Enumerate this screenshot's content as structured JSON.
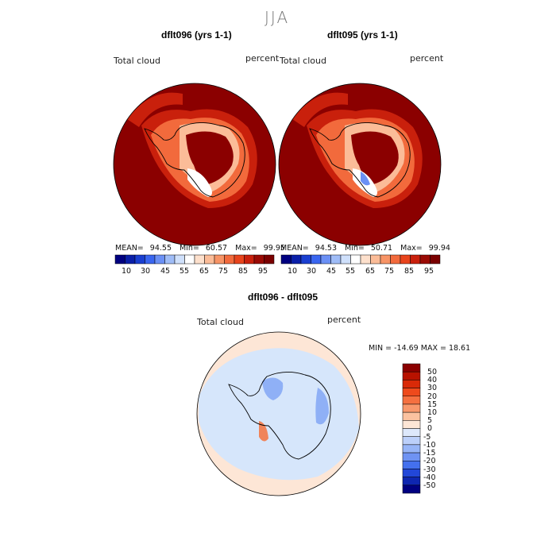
{
  "season": "JJA",
  "left_panel": {
    "title": "dflt096 (yrs 1-1)",
    "variable": "Total cloud",
    "units": "percent",
    "stats": {
      "mean": "MEAN=",
      "mean_val": "94.55",
      "min": "Min=",
      "min_val": "60.57",
      "max": "Max=",
      "max_val": "99.95"
    }
  },
  "right_panel": {
    "title": "dflt095 (yrs 1-1)",
    "variable": "Total cloud",
    "units": "percent",
    "stats": {
      "mean": "MEAN=",
      "mean_val": "94.53",
      "min": "Min=",
      "min_val": "50.71",
      "max": "Max=",
      "max_val": "99.94"
    }
  },
  "colorbar_top": {
    "ticks": [
      "10",
      "30",
      "45",
      "55",
      "65",
      "75",
      "85",
      "95"
    ],
    "colors": [
      "#000080",
      "#0a1fa8",
      "#1a3fd0",
      "#3a66f0",
      "#6b90f5",
      "#9fbcf7",
      "#cfe0fb",
      "#ffffff",
      "#fde0cc",
      "#fbbc98",
      "#f79466",
      "#f26a3c",
      "#e8441c",
      "#c9200c",
      "#9a0a04",
      "#7a0000"
    ]
  },
  "diff_panel": {
    "title": "dflt096 - dflt095",
    "variable": "Total cloud",
    "units": "percent",
    "minmax": "MIN = -14.69  MAX =   18.61",
    "colorbar": {
      "ticks": [
        "50",
        "40",
        "30",
        "20",
        "15",
        "10",
        "5",
        "0",
        "-5",
        "-10",
        "-15",
        "-20",
        "-30",
        "-40",
        "-50"
      ],
      "colors": [
        "#8b0000",
        "#b81200",
        "#d92a08",
        "#ee4a1c",
        "#f57040",
        "#f8986c",
        "#fbc2a0",
        "#fde6d6",
        "#dde8fb",
        "#bcd0fa",
        "#97b5f7",
        "#6f93f3",
        "#4470ee",
        "#2247d8",
        "#0e26b0",
        "#000080"
      ]
    }
  },
  "map_colors": {
    "field": "#8b0000",
    "ring1": "#c9200c",
    "ring2": "#f26a3c",
    "ring3": "#fbbc98",
    "ring4": "#ffffff",
    "blue": "#6b90f5",
    "coast": "#000000",
    "diff_bg": "#fde6d6",
    "diff_light_blue": "#d6e6fb",
    "diff_mid_blue": "#8fb0f6",
    "diff_red": "#f0845a"
  }
}
